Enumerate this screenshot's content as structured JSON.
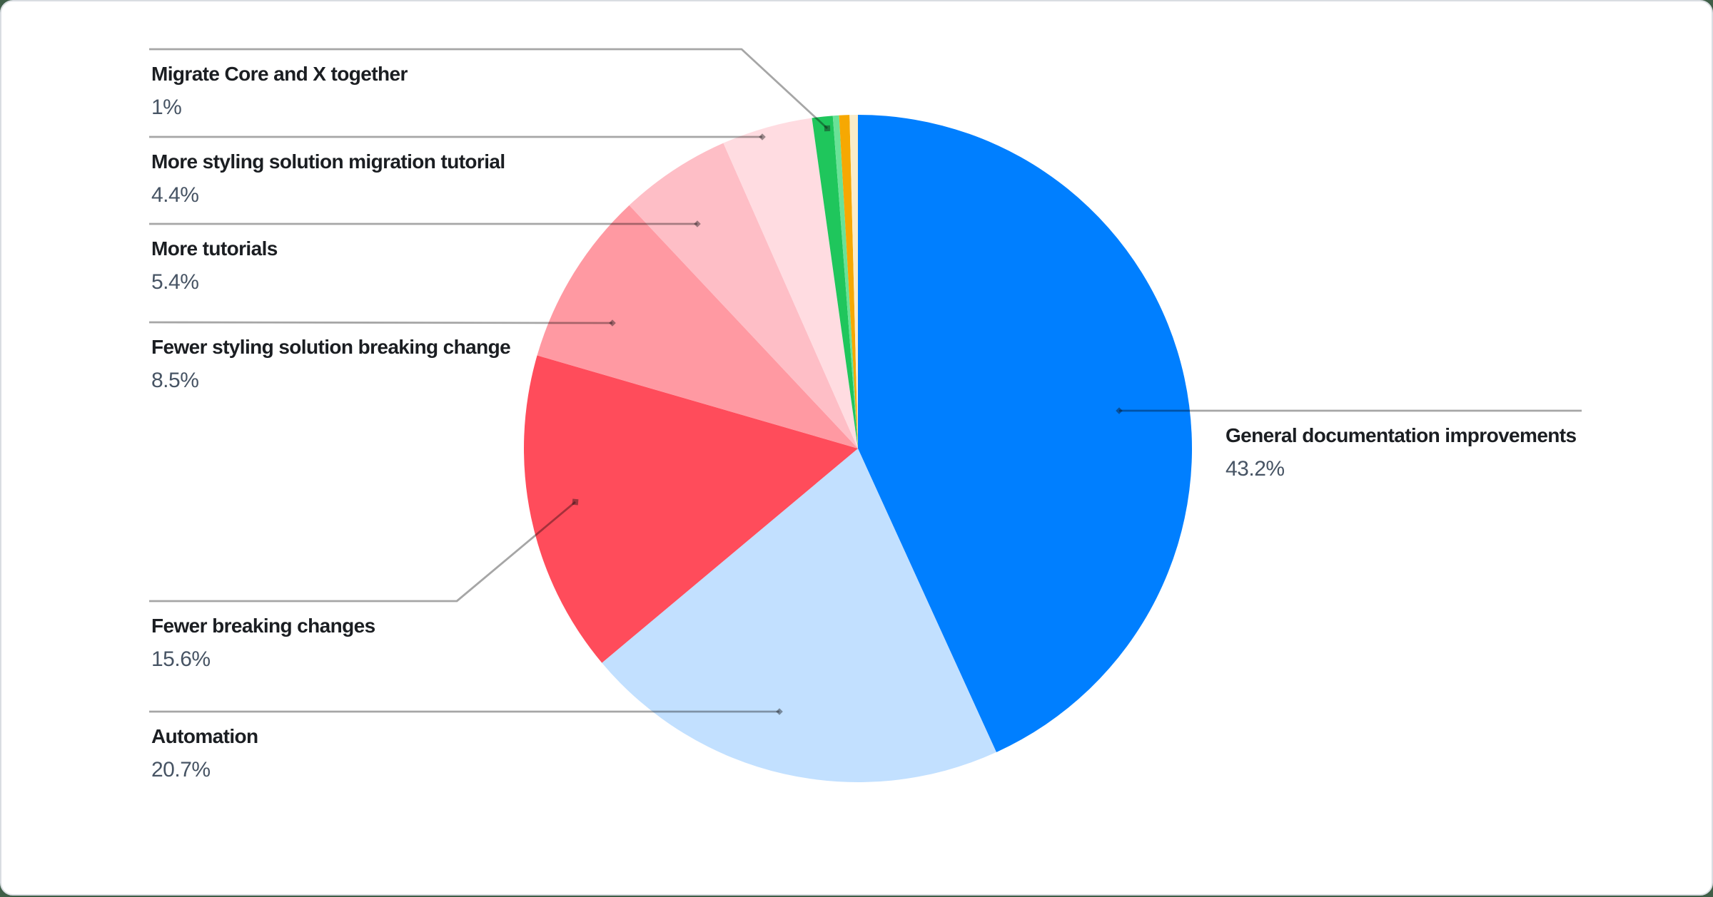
{
  "chart_data": {
    "type": "pie",
    "title": "",
    "legend_position": "none",
    "labels_layout": "callout-leader-lines",
    "slices": [
      {
        "id": "general-documentation-improvements",
        "label": "General documentation improvements",
        "value": 43.2,
        "display": "43.2%",
        "color": "#007FFF",
        "labeled": true
      },
      {
        "id": "automation",
        "label": "Automation",
        "value": 20.7,
        "display": "20.7%",
        "color": "#C2E0FF",
        "labeled": true
      },
      {
        "id": "fewer-breaking-changes",
        "label": "Fewer breaking changes",
        "value": 15.6,
        "display": "15.6%",
        "color": "#FF4C5B",
        "labeled": true
      },
      {
        "id": "fewer-styling-solution-breaking-change",
        "label": "Fewer styling solution breaking change",
        "value": 8.5,
        "display": "8.5%",
        "color": "#FF99A2",
        "labeled": true
      },
      {
        "id": "more-tutorials",
        "label": "More tutorials",
        "value": 5.4,
        "display": "5.4%",
        "color": "#FEBEC6",
        "labeled": true
      },
      {
        "id": "more-styling-solution-migration-tutorial",
        "label": "More styling solution migration tutorial",
        "value": 4.4,
        "display": "4.4%",
        "color": "#FFDCE1",
        "labeled": true
      },
      {
        "id": "migrate-core-and-x-together",
        "label": "Migrate Core and X together",
        "value": 1.0,
        "display": "1%",
        "color": "#1FC65C",
        "labeled": true
      },
      {
        "id": "unlabeled-small-1",
        "label": "",
        "value": 0.3,
        "display": "",
        "color": "#69E297",
        "labeled": false
      },
      {
        "id": "unlabeled-small-2",
        "label": "",
        "value": 0.5,
        "display": "",
        "color": "#F6A802",
        "labeled": false
      },
      {
        "id": "unlabeled-small-3",
        "label": "",
        "value": 0.4,
        "display": "",
        "color": "#FAECC8",
        "labeled": false
      }
    ]
  },
  "theme": {
    "card_background": "#FFFFFF",
    "card_border": "#D9DDE2",
    "page_background": "#3F5E47",
    "leader_line_color": "rgba(0,0,0,0.35)",
    "marker_color": "rgba(20,20,22,0.42)",
    "label_title_color": "#1B1E22",
    "label_value_color": "#4E5B6C"
  }
}
